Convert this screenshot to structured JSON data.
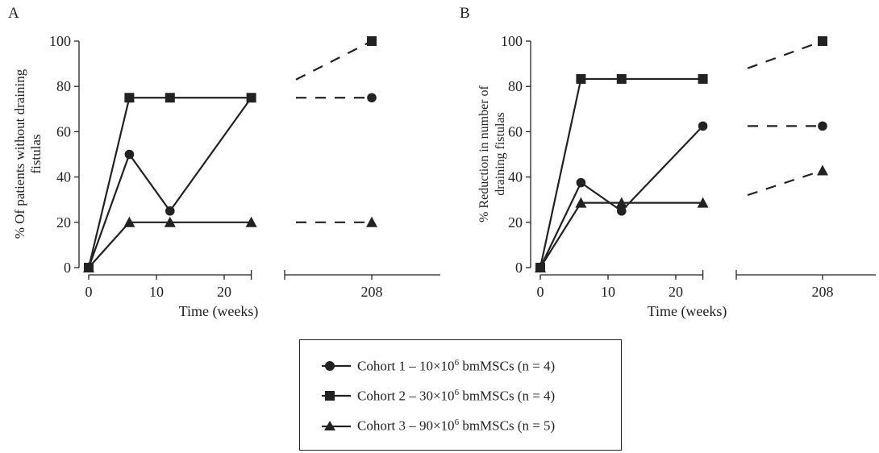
{
  "chart_data": [
    {
      "type": "line",
      "panel": "A",
      "ylabel": "% Of patients without draining fistulas",
      "xlabel": "Time (weeks)",
      "ylim": [
        0,
        100
      ],
      "yticks": [
        0,
        20,
        40,
        60,
        80,
        100
      ],
      "xticks": [
        "0",
        "10",
        "20",
        "208"
      ],
      "grid": false,
      "axis_break": "between 24 and 208",
      "series": [
        {
          "name": "Cohort 1 – 10×10⁶ bmMSCs (n = 4)",
          "marker": "circle",
          "x": [
            0,
            6,
            12,
            24,
            208
          ],
          "y": [
            0,
            50,
            25,
            75,
            75
          ],
          "extrapolated_from": 75
        },
        {
          "name": "Cohort 2 – 30×10⁶ bmMSCs (n = 4)",
          "marker": "square",
          "x": [
            0,
            6,
            12,
            24,
            208
          ],
          "y": [
            0,
            75,
            75,
            75,
            100
          ],
          "extrapolated_from": 83
        },
        {
          "name": "Cohort 3 – 90×10⁶ bmMSCs (n = 5)",
          "marker": "triangle",
          "x": [
            0,
            6,
            12,
            24,
            208
          ],
          "y": [
            0,
            20,
            20,
            20,
            20
          ],
          "extrapolated_from": 20
        }
      ]
    },
    {
      "type": "line",
      "panel": "B",
      "ylabel": "% Reduction in number of draining fistulas",
      "xlabel": "Time (weeks)",
      "ylim": [
        0,
        100
      ],
      "yticks": [
        0,
        20,
        40,
        60,
        80,
        100
      ],
      "xticks": [
        "0",
        "10",
        "20",
        "208"
      ],
      "grid": false,
      "axis_break": "between 24 and 208",
      "series": [
        {
          "name": "Cohort 1 – 10×10⁶ bmMSCs (n = 4)",
          "marker": "circle",
          "x": [
            0,
            6,
            12,
            24,
            208
          ],
          "y": [
            0,
            37.5,
            25,
            62.5,
            62.5
          ],
          "extrapolated_from": 62.5
        },
        {
          "name": "Cohort 2 – 30×10⁶ bmMSCs (n = 4)",
          "marker": "square",
          "x": [
            0,
            6,
            12,
            24,
            208
          ],
          "y": [
            0,
            83.3,
            83.3,
            83.3,
            100
          ],
          "extrapolated_from": 88
        },
        {
          "name": "Cohort 3 – 90×10⁶ bmMSCs (n = 5)",
          "marker": "triangle",
          "x": [
            0,
            6,
            12,
            24,
            208
          ],
          "y": [
            0,
            28.6,
            28.6,
            28.6,
            42.9
          ],
          "extrapolated_from": 32
        }
      ]
    }
  ],
  "legend": {
    "placement": "bottom-center",
    "items": [
      {
        "marker": "circle",
        "prefix": "Cohort 1 – 10×10",
        "sup": "6",
        "suffix": " bmMSCs (n = 4)"
      },
      {
        "marker": "square",
        "prefix": "Cohort 2 – 30×10",
        "sup": "6",
        "suffix": " bmMSCs (n = 4)"
      },
      {
        "marker": "triangle",
        "prefix": "Cohort 3 – 90×10",
        "sup": "6",
        "suffix": " bmMSCs (n = 5)"
      }
    ]
  },
  "colors": {
    "ink": "#222222"
  }
}
